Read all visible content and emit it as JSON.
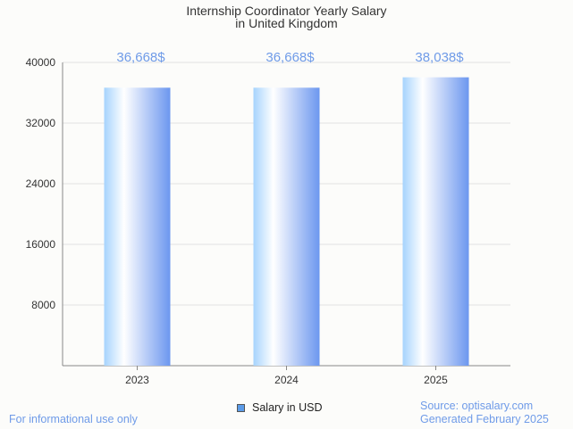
{
  "chart_data": {
    "type": "bar",
    "title": "Internship Coordinator Yearly Salary",
    "subtitle": "in United Kingdom",
    "categories": [
      "2023",
      "2024",
      "2025"
    ],
    "values": [
      36668,
      36668,
      38038
    ],
    "data_labels": [
      "36,668$",
      "36,668$",
      "38,038$"
    ],
    "yticks": [
      8000,
      16000,
      24000,
      32000,
      40000
    ],
    "ylim": [
      0,
      40000
    ],
    "xlabel": "",
    "ylabel": "",
    "grid": true,
    "legend": {
      "label": "Salary in USD",
      "placement": "bottom-center"
    },
    "colors": {
      "bar_light": "#a6d3fd",
      "bar_dark": "#6c97ef",
      "label": "#6f9be8",
      "legend_swatch": "#5b9be8"
    }
  },
  "footer": {
    "disclaimer": "For informational use only",
    "source": "Source: optisalary.com",
    "generated": "Generated February 2025"
  }
}
